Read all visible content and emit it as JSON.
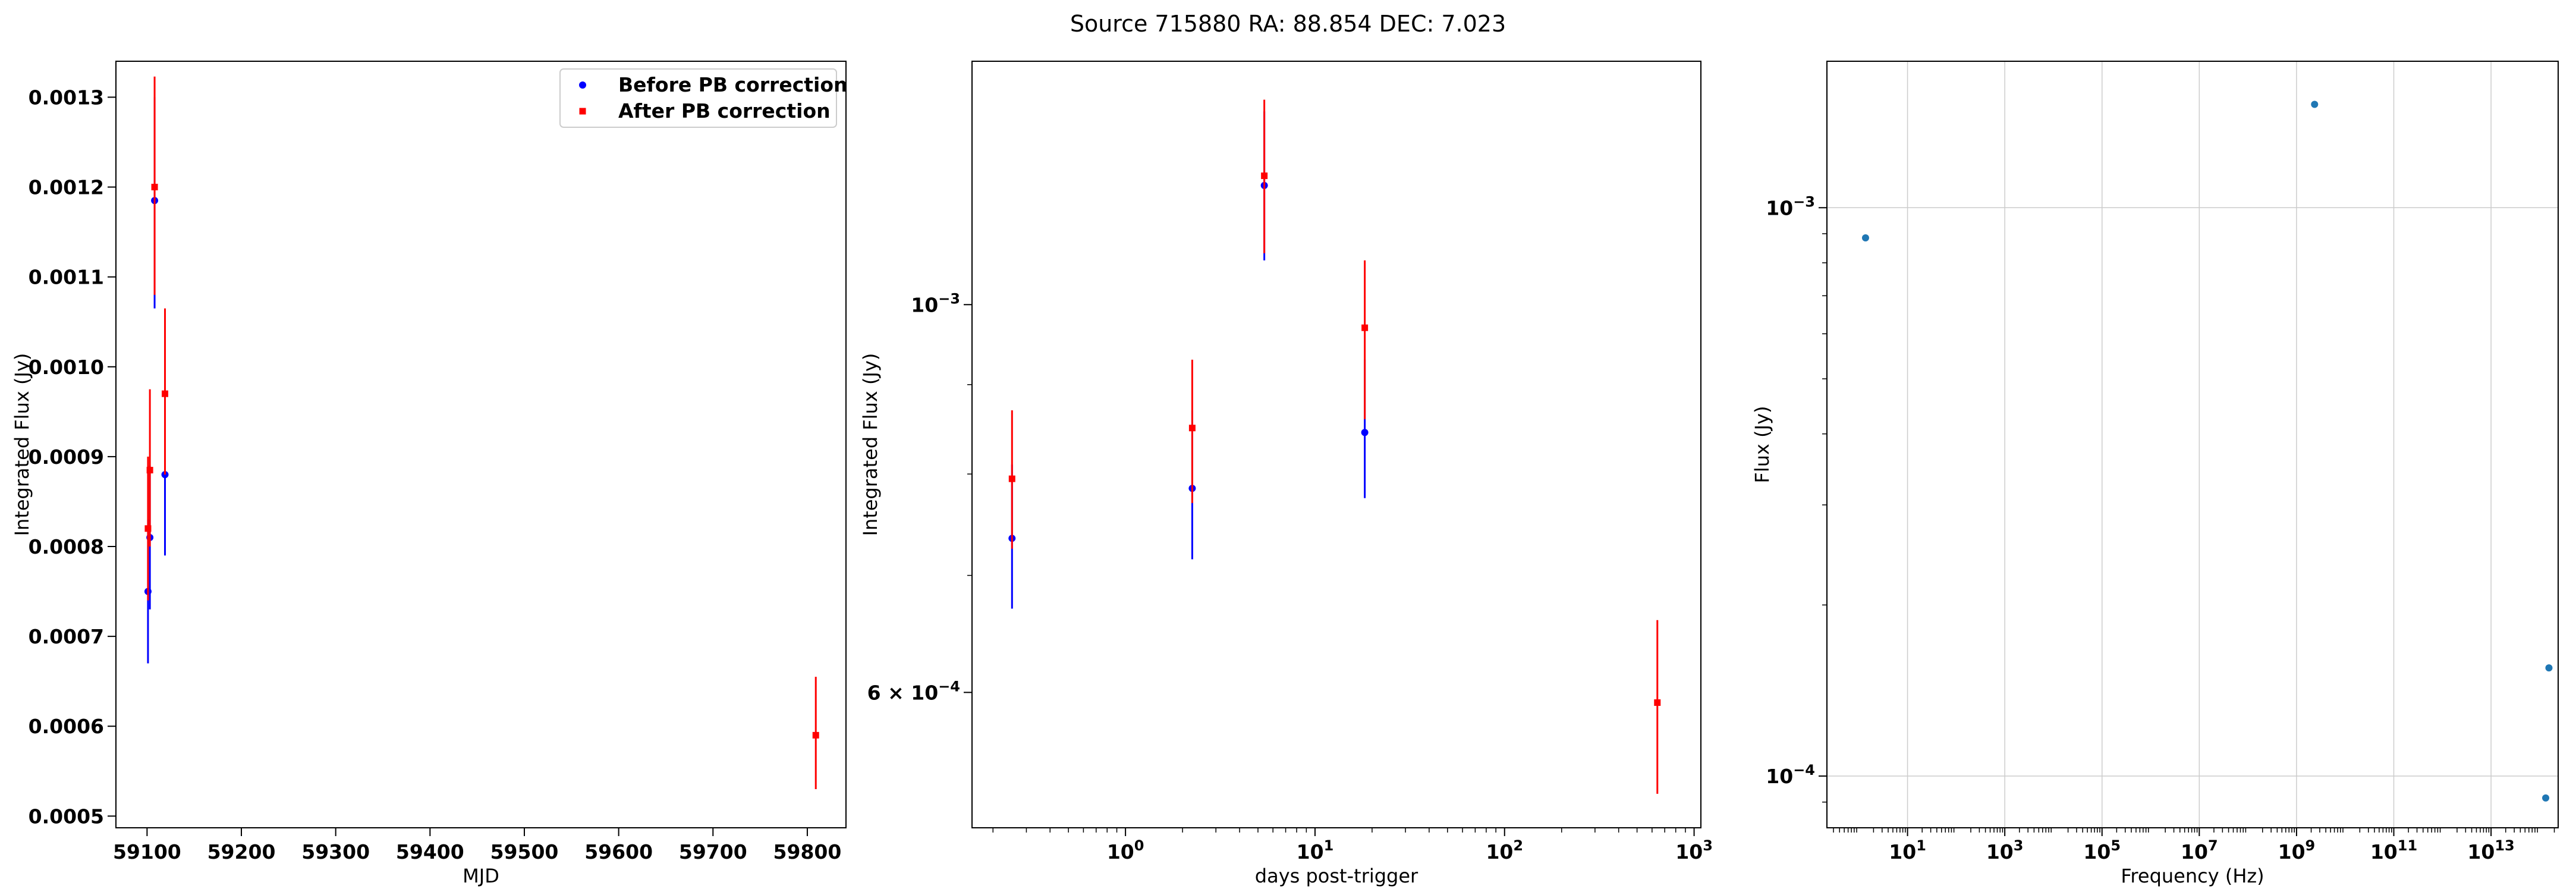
{
  "figure": {
    "suptitle": "Source 715880 RA: 88.854 DEC: 7.023"
  },
  "colors": {
    "before": "#0000ff",
    "after": "#ff0000",
    "sed": "#1f77b4",
    "grid": "#cccccc"
  },
  "chart_data": [
    {
      "type": "scatter",
      "xlabel": "MJD",
      "ylabel": "Integrated Flux (Jy)",
      "xscale": "linear",
      "yscale": "linear",
      "xlim": [
        59067,
        59841
      ],
      "ylim": [
        0.000487,
        0.00134
      ],
      "xticks": [
        59100,
        59200,
        59300,
        59400,
        59500,
        59600,
        59700,
        59800
      ],
      "xtick_labels": [
        "59100",
        "59200",
        "59300",
        "59400",
        "59500",
        "59600",
        "59700",
        "59800"
      ],
      "yticks": [
        0.0005,
        0.0006,
        0.0007,
        0.0008,
        0.0009,
        0.001,
        0.0011,
        0.0012,
        0.0013
      ],
      "ytick_labels": [
        "0.0005",
        "0.0006",
        "0.0007",
        "0.0008",
        "0.0009",
        "0.0010",
        "0.0011",
        "0.0012",
        "0.0013"
      ],
      "grid": false,
      "legend": {
        "position": "top-right",
        "entries": [
          "Before PB correction",
          "After PB correction"
        ]
      },
      "series": [
        {
          "name": "Before PB correction",
          "color": "before",
          "marker": "circle",
          "x": [
            59101,
            59103,
            59108,
            59119
          ],
          "y": [
            0.00075,
            0.00081,
            0.001185,
            0.00088
          ],
          "yerr_low": [
            0.00067,
            0.00073,
            0.001065,
            0.00079
          ],
          "yerr_high": [
            0.00083,
            0.00089,
            0.0013,
            0.00097
          ]
        },
        {
          "name": "After PB correction",
          "color": "after",
          "marker": "square",
          "x": [
            59101,
            59103,
            59108,
            59119,
            59809
          ],
          "y": [
            0.00082,
            0.000885,
            0.0012,
            0.00097,
            0.00059
          ],
          "yerr_low": [
            0.00074,
            0.0008,
            0.00108,
            0.00088,
            0.00053
          ],
          "yerr_high": [
            0.0009,
            0.000975,
            0.001323,
            0.001065,
            0.000655
          ]
        }
      ]
    },
    {
      "type": "scatter",
      "xlabel": "days post-trigger",
      "ylabel": "Integrated Flux (Jy)",
      "xscale": "log",
      "yscale": "log",
      "xlim": [
        0.155,
        1086
      ],
      "ylim": [
        0.000502,
        0.001378
      ],
      "xticks": [
        1,
        10,
        100,
        1000
      ],
      "xtick_labels": [
        [
          "10",
          "0"
        ],
        [
          "10",
          "1"
        ],
        [
          "10",
          "2"
        ],
        [
          "10",
          "3"
        ]
      ],
      "yticks": [
        0.0006,
        0.001
      ],
      "ytick_labels": [
        [
          "6 × 10",
          "−4"
        ],
        [
          "10",
          "−3"
        ]
      ],
      "grid": false,
      "series": [
        {
          "name": "Before PB correction",
          "color": "before",
          "marker": "circle",
          "x": [
            0.252,
            2.25,
            5.4,
            18.3
          ],
          "y": [
            0.000735,
            0.000785,
            0.00117,
            0.000845
          ],
          "yerr_low": [
            0.00067,
            0.000715,
            0.00106,
            0.000775
          ],
          "yerr_high": [
            0.00081,
            0.00087,
            0.00129,
            0.00093
          ]
        },
        {
          "name": "After PB correction",
          "color": "after",
          "marker": "square",
          "x": [
            0.252,
            2.25,
            5.4,
            18.3,
            640
          ],
          "y": [
            0.000795,
            0.00085,
            0.001185,
            0.00097,
            0.000592
          ],
          "yerr_low": [
            0.000725,
            0.00077,
            0.00107,
            0.00086,
            0.000525
          ],
          "yerr_high": [
            0.00087,
            0.00093,
            0.00131,
            0.00106,
            0.00066
          ]
        }
      ]
    },
    {
      "type": "scatter",
      "xlabel": "Frequency (Hz)",
      "ylabel": "Flux (Jy)",
      "xscale": "log",
      "yscale": "log",
      "xlim": [
        0.22,
        240000000000000.0
      ],
      "ylim": [
        8.11e-05,
        0.00181
      ],
      "xticks": [
        10,
        1000,
        100000,
        10000000.0,
        1000000000.0,
        100000000000.0,
        10000000000000.0
      ],
      "xtick_labels": [
        [
          "10",
          "1"
        ],
        [
          "10",
          "3"
        ],
        [
          "10",
          "5"
        ],
        [
          "10",
          "7"
        ],
        [
          "10",
          "9"
        ],
        [
          "10",
          "11"
        ],
        [
          "10",
          "13"
        ]
      ],
      "yticks": [
        0.0001,
        0.001
      ],
      "ytick_labels": [
        [
          "10",
          "−4"
        ],
        [
          "10",
          "−3"
        ]
      ],
      "grid": true,
      "series": [
        {
          "color": "sed",
          "marker": "circle",
          "x": [
            1.37,
            2350000000.0,
            155000000000000.0,
            133000000000000.0
          ],
          "y": [
            0.000885,
            0.00152,
            0.000155,
            9.15e-05
          ]
        }
      ]
    }
  ]
}
